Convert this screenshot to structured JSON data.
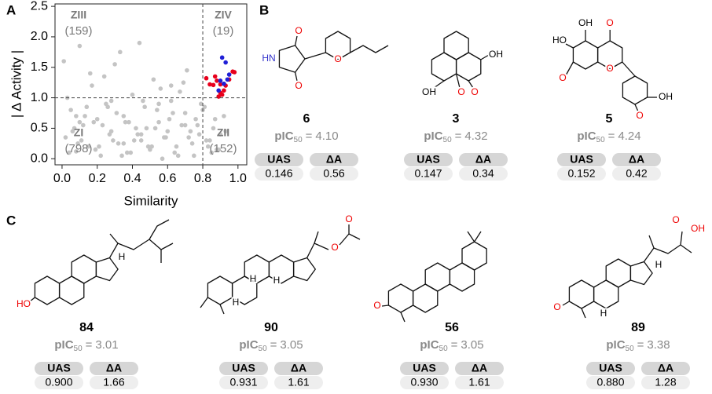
{
  "panel_labels": [
    "A",
    "B",
    "C"
  ],
  "chart_data": {
    "type": "scatter",
    "xlabel": "Similarity",
    "ylabel": "| Δ Activity |",
    "xlim": [
      -0.04,
      1.05
    ],
    "ylim": [
      -0.1,
      2.54
    ],
    "xticks": [
      {
        "value": 0,
        "label": "0.0"
      },
      {
        "value": 0.2,
        "label": "0.2"
      },
      {
        "value": 0.4,
        "label": "0.4"
      },
      {
        "value": 0.6,
        "label": "0.6"
      },
      {
        "value": 0.8,
        "label": "0.8"
      },
      {
        "value": 1,
        "label": "1.0"
      }
    ],
    "yticks": [
      {
        "value": 0,
        "label": "0.0"
      },
      {
        "value": 0.5,
        "label": "0.5"
      },
      {
        "value": 1,
        "label": "1.0"
      },
      {
        "value": 1.5,
        "label": "1.5"
      },
      {
        "value": 2,
        "label": "2.0"
      },
      {
        "value": 2.5,
        "label": "2.5"
      }
    ],
    "reference_lines": {
      "x": 0.8,
      "y": 1.0
    },
    "annotations": [
      "ZIII",
      "(159)",
      "ZIV",
      "(19)",
      "ZI",
      "(798)",
      "ZII",
      "(152)"
    ],
    "series": [
      {
        "color": "#c4c4c4",
        "x": [
          0.02,
          0.05,
          0.08,
          0.1,
          0.12,
          0.15,
          0.17,
          0.2,
          0.22,
          0.25,
          0.27,
          0.3,
          0.32,
          0.35,
          0.37,
          0.4,
          0.42,
          0.45,
          0.47,
          0.5,
          0.52,
          0.55,
          0.57,
          0.6,
          0.62,
          0.65,
          0.67,
          0.7,
          0.72,
          0.75,
          0.77,
          0.8,
          0.82,
          0.85,
          0.87,
          0.9,
          0.03,
          0.06,
          0.09,
          0.13,
          0.16,
          0.19,
          0.23,
          0.26,
          0.29,
          0.33,
          0.36,
          0.39,
          0.43,
          0.46,
          0.49,
          0.53,
          0.56,
          0.59,
          0.63,
          0.66,
          0.69,
          0.73,
          0.76,
          0.79,
          0.83,
          0.86,
          0.89,
          0.92,
          0.01,
          0.04,
          0.07,
          0.11,
          0.14,
          0.18,
          0.21,
          0.24,
          0.28,
          0.31,
          0.34,
          0.38,
          0.41,
          0.44,
          0.48,
          0.51,
          0.54,
          0.58,
          0.61,
          0.64,
          0.68,
          0.71,
          0.74,
          0.78,
          0.81,
          0.84,
          0.88,
          0.93,
          0.1,
          0.35,
          0.55,
          0.7,
          0.08,
          0.45,
          0.62,
          0.28
        ],
        "values": [
          0.35,
          0.8,
          0.12,
          1.85,
          0.55,
          0.2,
          1.2,
          0.65,
          0.05,
          0.9,
          0.4,
          1.55,
          0.25,
          0.7,
          0.1,
          1.05,
          0.5,
          0.3,
          0.85,
          0.15,
          1.3,
          0.6,
          0.0,
          0.45,
          0.95,
          0.2,
          1.1,
          0.75,
          0.35,
          0.05,
          0.55,
          0.8,
          0.3,
          0.1,
          0.65,
          0.4,
          1.0,
          0.45,
          0.25,
          0.7,
          1.4,
          0.15,
          0.55,
          0.85,
          0.3,
          1.75,
          0.6,
          0.1,
          0.4,
          0.95,
          0.2,
          0.5,
          1.15,
          0.35,
          0.75,
          0.05,
          1.25,
          0.45,
          0.65,
          0.9,
          0.2,
          0.5,
          0.15,
          0.7,
          1.6,
          0.1,
          0.5,
          0.3,
          0.85,
          0.6,
          0.2,
          1.35,
          0.45,
          0.75,
          0.05,
          0.6,
          0.3,
          1.9,
          0.5,
          0.2,
          0.8,
          0.35,
          0.65,
          0.1,
          0.55,
          1.45,
          0.25,
          0.4,
          0.85,
          0.3,
          0.15,
          0.45,
          0.6,
          0.25,
          0.9,
          0.55,
          0.7,
          0.4,
          1.2,
          0.95
        ]
      },
      {
        "color": "#e8001c",
        "x": [
          0.82,
          0.84,
          0.86,
          0.88,
          0.9,
          0.91,
          0.92,
          0.93,
          0.95,
          0.97,
          0.98,
          0.89,
          0.9,
          0.87
        ],
        "values": [
          1.32,
          1.22,
          1.21,
          1.28,
          1.22,
          1.05,
          1.12,
          1.2,
          1.3,
          1.43,
          1.42,
          1.02,
          1.08,
          1.35
        ]
      },
      {
        "color": "#1f1fd6",
        "x": [
          0.91,
          0.93,
          0.95,
          0.9,
          0.92,
          0.89,
          0.94
        ],
        "values": [
          1.66,
          1.58,
          1.38,
          1.28,
          1.23,
          1.12,
          1.3
        ]
      }
    ]
  },
  "labels": {
    "pic": "pIC",
    "pic_sub": "50",
    "equals": "=",
    "uas": "UAS",
    "da": "ΔA"
  },
  "compounds": [
    {
      "id": "6",
      "atoms": [
        "O",
        "HN",
        "O",
        "O"
      ],
      "pic": "4.10",
      "uas": "0.146",
      "da": "0.56"
    },
    {
      "id": "3",
      "atoms": [
        "OH",
        "OH",
        "O",
        "O"
      ],
      "pic": "4.32",
      "uas": "0.147",
      "da": "0.34"
    },
    {
      "id": "5",
      "atoms": [
        "OH",
        "O",
        "HO",
        "O",
        "O",
        "OH",
        "O"
      ],
      "pic": "4.24",
      "uas": "0.152",
      "da": "0.42"
    },
    {
      "id": "84",
      "atoms": [
        "HO",
        "H"
      ],
      "pic": "3.01",
      "uas": "0.900",
      "da": "1.66"
    },
    {
      "id": "90",
      "atoms": [
        "O",
        "O",
        "H",
        "H",
        "H"
      ],
      "pic": "3.05",
      "uas": "0.931",
      "da": "1.61"
    },
    {
      "id": "56",
      "atoms": [
        "O"
      ],
      "pic": "3.05",
      "uas": "0.930",
      "da": "1.61"
    },
    {
      "id": "89",
      "atoms": [
        "O",
        "H",
        "H",
        "O",
        "OH"
      ],
      "pic": "3.38",
      "uas": "0.880",
      "da": "1.28"
    }
  ]
}
